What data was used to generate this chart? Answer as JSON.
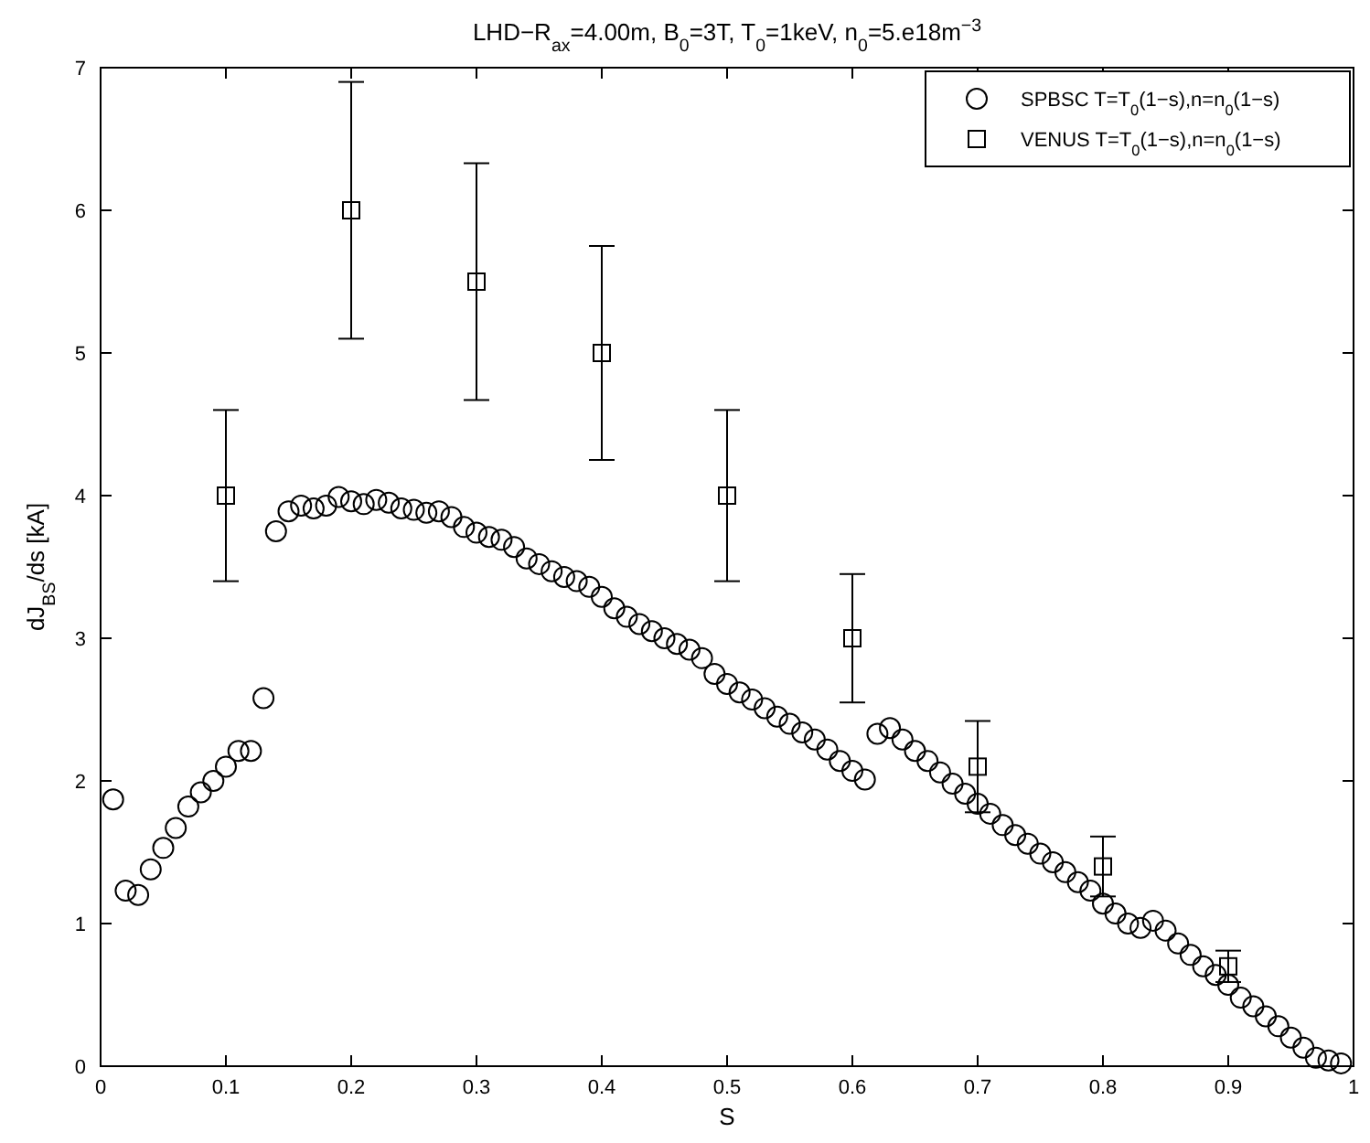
{
  "chart_data": {
    "type": "scatter",
    "title": "LHD−R$_{ax}$=4.00m, B$_{0}$=3T, T$_{0}$=1keV, n$_{0}$=5.e18m$^{−3}$",
    "xlabel": "S",
    "ylabel": "dJ$_{BS}$/ds  [kA]",
    "xlim": [
      0,
      1
    ],
    "ylim": [
      0,
      7
    ],
    "xticks": [
      0,
      0.1,
      0.2,
      0.3,
      0.4,
      0.5,
      0.6,
      0.7,
      0.8,
      0.9,
      1
    ],
    "yticks": [
      0,
      1,
      2,
      3,
      4,
      5,
      6,
      7
    ],
    "grid": false,
    "legend": "top right",
    "series": [
      {
        "name": "SPBSC T=T$_{0}$(1−s),n=n$_{0}$(1−s)",
        "color": "#000000",
        "marker": "circle",
        "x": [
          0.01,
          0.02,
          0.03,
          0.04,
          0.05,
          0.06,
          0.07,
          0.08,
          0.09,
          0.1,
          0.11,
          0.12,
          0.13,
          0.14,
          0.15,
          0.16,
          0.17,
          0.18,
          0.19,
          0.2,
          0.21,
          0.22,
          0.23,
          0.24,
          0.25,
          0.26,
          0.27,
          0.28,
          0.29,
          0.3,
          0.31,
          0.32,
          0.33,
          0.34,
          0.35,
          0.36,
          0.37,
          0.38,
          0.39,
          0.4,
          0.41,
          0.42,
          0.43,
          0.44,
          0.45,
          0.46,
          0.47,
          0.48,
          0.49,
          0.5,
          0.51,
          0.52,
          0.53,
          0.54,
          0.55,
          0.56,
          0.57,
          0.58,
          0.59,
          0.6,
          0.61,
          0.62,
          0.63,
          0.64,
          0.65,
          0.66,
          0.67,
          0.68,
          0.69,
          0.7,
          0.71,
          0.72,
          0.73,
          0.74,
          0.75,
          0.76,
          0.77,
          0.78,
          0.79,
          0.8,
          0.81,
          0.82,
          0.83,
          0.84,
          0.85,
          0.86,
          0.87,
          0.88,
          0.89,
          0.9,
          0.91,
          0.92,
          0.93,
          0.94,
          0.95,
          0.96,
          0.97,
          0.98,
          0.99
        ],
        "values": [
          1.87,
          1.23,
          1.2,
          1.38,
          1.53,
          1.67,
          1.82,
          1.92,
          2.0,
          2.1,
          2.21,
          2.21,
          2.58,
          3.75,
          3.89,
          3.93,
          3.91,
          3.93,
          3.99,
          3.96,
          3.94,
          3.97,
          3.95,
          3.91,
          3.9,
          3.88,
          3.89,
          3.85,
          3.78,
          3.74,
          3.71,
          3.69,
          3.64,
          3.56,
          3.52,
          3.47,
          3.43,
          3.4,
          3.36,
          3.29,
          3.21,
          3.15,
          3.1,
          3.05,
          3.0,
          2.96,
          2.92,
          2.86,
          2.75,
          2.68,
          2.62,
          2.57,
          2.51,
          2.45,
          2.4,
          2.34,
          2.29,
          2.22,
          2.14,
          2.07,
          2.01,
          2.33,
          2.37,
          2.29,
          2.21,
          2.14,
          2.06,
          1.98,
          1.91,
          1.84,
          1.77,
          1.69,
          1.62,
          1.56,
          1.49,
          1.43,
          1.36,
          1.29,
          1.23,
          1.14,
          1.07,
          1.0,
          0.97,
          1.02,
          0.95,
          0.86,
          0.78,
          0.7,
          0.64,
          0.57,
          0.48,
          0.42,
          0.35,
          0.28,
          0.2,
          0.13,
          0.06,
          0.04,
          0.02
        ]
      },
      {
        "name": "VENUS T=T$_{0}$(1−s),n=n$_{0}$(1−s)",
        "color": "#000000",
        "marker": "square",
        "x": [
          0.1,
          0.2,
          0.3,
          0.4,
          0.5,
          0.6,
          0.7,
          0.8,
          0.9
        ],
        "values": [
          4,
          6,
          5.5,
          5,
          4,
          3,
          2.1,
          1.4,
          0.7
        ],
        "errors": [
          0.6,
          0.9,
          0.83,
          0.75,
          0.6,
          0.45,
          0.32,
          0.21,
          0.11
        ]
      }
    ]
  }
}
